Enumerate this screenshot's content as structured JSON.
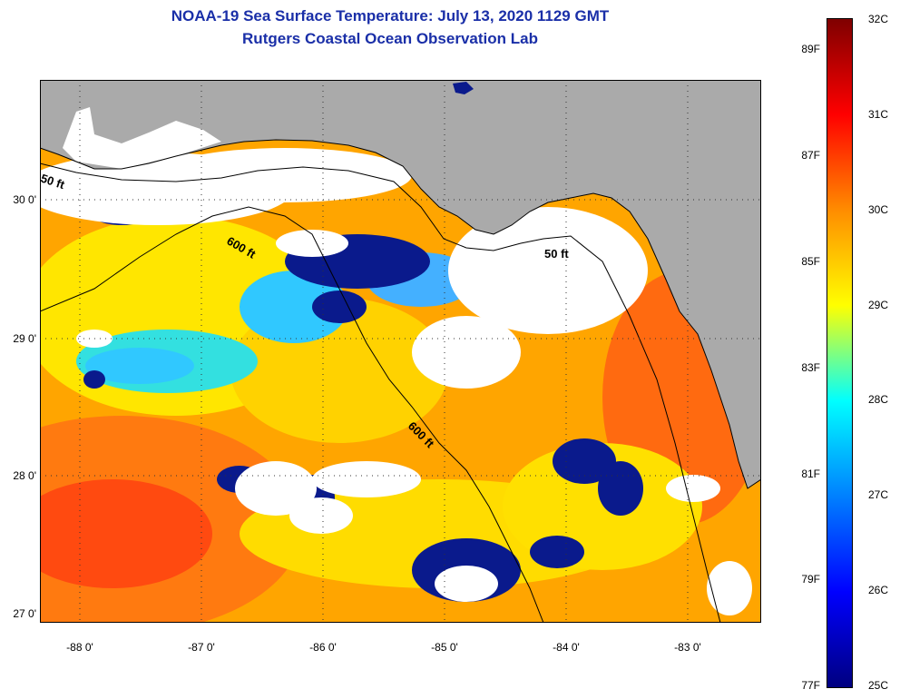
{
  "title": {
    "line1": "NOAA-19 Sea Surface Temperature:  July 13, 2020 1129 GMT",
    "line2": "Rutgers Coastal Ocean Observation Lab"
  },
  "axes": {
    "lat_labels": [
      "30 0'",
      "29 0'",
      "28 0'",
      "27 0'"
    ],
    "lon_labels": [
      "-88 0'",
      "-87 0'",
      "-86 0'",
      "-85 0'",
      "-84 0'",
      "-83 0'"
    ]
  },
  "contours": {
    "ft50": "50 ft",
    "ft600": "600 ft"
  },
  "colorbar": {
    "fahrenheit": [
      "89F",
      "87F",
      "85F",
      "83F",
      "81F",
      "79F",
      "77F"
    ],
    "celsius": [
      "32C",
      "31C",
      "30C",
      "29C",
      "28C",
      "27C",
      "26C",
      "25C"
    ],
    "colors": [
      "#7f0000",
      "#ff0000",
      "#ff8c00",
      "#ffff00",
      "#00ffff",
      "#0080ff",
      "#0000ff",
      "#000080"
    ]
  },
  "colors": {
    "land": "#aaaaaa",
    "cloud": "#ffffff",
    "cold": "#0a1a8c",
    "title": "#1a2fa8"
  }
}
